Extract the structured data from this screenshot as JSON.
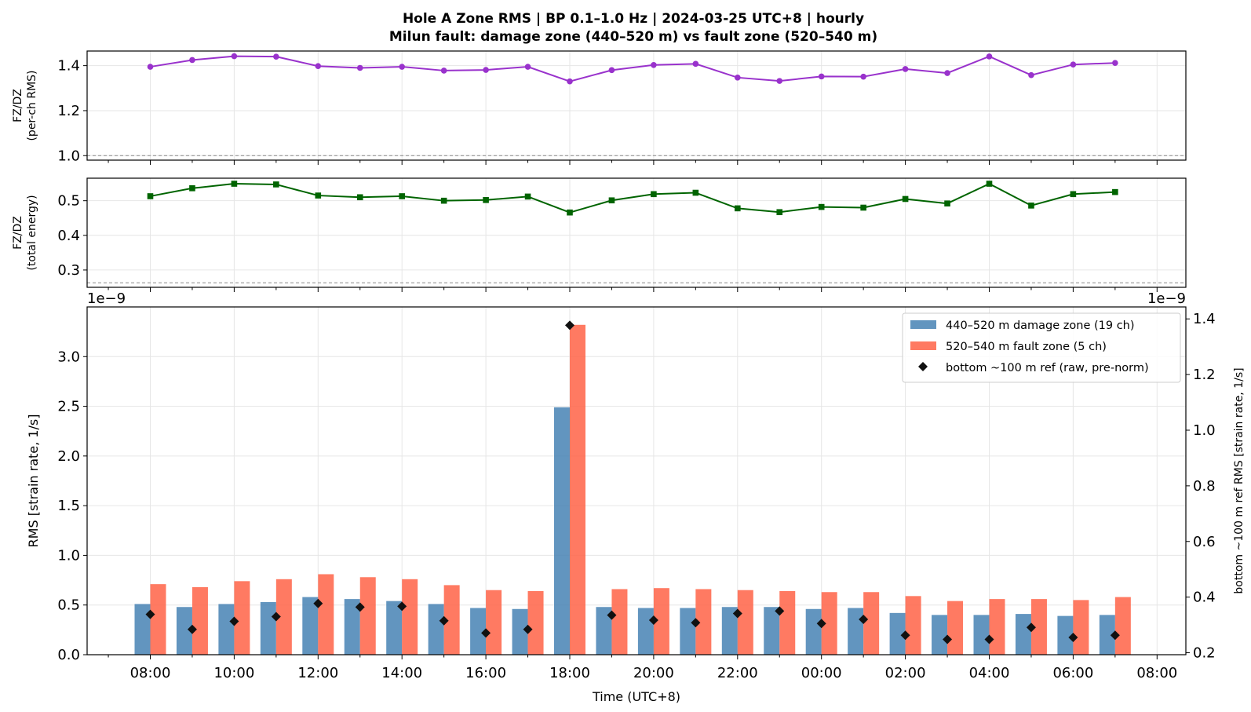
{
  "figure": {
    "title_line1": "Hole A Zone RMS  |  BP 0.1–1.0 Hz  |  2024-03-25 UTC+8  |  hourly",
    "title_line2": "Milun fault: damage zone (440–520 m) vs fault zone (520–540 m)"
  },
  "chart_data": [
    {
      "id": "ratio_rms",
      "type": "line",
      "ylabel_line1": "FZ/DZ",
      "ylabel_line2": "(per-ch RMS)",
      "ylim": [
        0.98,
        1.465
      ],
      "yticks": [
        1.0,
        1.2,
        1.4
      ],
      "ytick_labels": [
        "1.0",
        "1.2",
        "1.4"
      ],
      "reference_line": 1.0,
      "color": "#9932CC",
      "marker": "circle",
      "grid": true,
      "values": [
        1.395,
        1.425,
        1.442,
        1.44,
        1.398,
        1.39,
        1.395,
        1.378,
        1.381,
        1.395,
        1.33,
        1.38,
        1.403,
        1.408,
        1.347,
        1.332,
        1.352,
        1.351,
        1.385,
        1.367,
        1.441,
        1.358,
        1.405,
        1.412
      ]
    },
    {
      "id": "ratio_energy",
      "type": "line",
      "ylabel_line1": "FZ/DZ",
      "ylabel_line2": "(total energy)",
      "ylim": [
        0.25,
        0.565
      ],
      "yticks": [
        0.3,
        0.4,
        0.5
      ],
      "ytick_labels": [
        "0.3",
        "0.4",
        "0.5"
      ],
      "reference_line": 0.263,
      "color": "#006400",
      "marker": "square",
      "grid": true,
      "values": [
        0.513,
        0.536,
        0.549,
        0.547,
        0.515,
        0.51,
        0.513,
        0.5,
        0.502,
        0.512,
        0.466,
        0.501,
        0.519,
        0.523,
        0.478,
        0.467,
        0.482,
        0.48,
        0.505,
        0.492,
        0.549,
        0.486,
        0.519,
        0.525
      ]
    },
    {
      "id": "zone_rms",
      "type": "bar",
      "xlabel": "Time (UTC+8)",
      "ylabel": "RMS  [strain rate, 1/s]",
      "y2label": "bottom ~100 m ref RMS  [strain rate, 1/s]",
      "offset_left": "1e−9",
      "offset_right": "1e−9",
      "ylim": [
        0,
        3.5
      ],
      "y2lim": [
        0.193,
        1.443
      ],
      "yticks": [
        0.0,
        0.5,
        1.0,
        1.5,
        2.0,
        2.5,
        3.0
      ],
      "ytick_labels": [
        "0.0",
        "0.5",
        "1.0",
        "1.5",
        "2.0",
        "2.5",
        "3.0"
      ],
      "y2ticks": [
        0.2,
        0.4,
        0.6,
        0.8,
        1.0,
        1.2,
        1.4
      ],
      "y2tick_labels": [
        "0.2",
        "0.4",
        "0.6",
        "0.8",
        "1.0",
        "1.2",
        "1.4"
      ],
      "x_hours": 24,
      "x_start": "2024-03-25 08:00",
      "xticks": [
        "08:00",
        "10:00",
        "12:00",
        "14:00",
        "16:00",
        "18:00",
        "20:00",
        "22:00",
        "00:00",
        "02:00",
        "04:00",
        "06:00",
        "08:00"
      ],
      "grid": true,
      "legend_position": "upper right",
      "series": [
        {
          "name": "440–520 m  damage zone (19 ch)",
          "color": "#4682B4",
          "axis": "left",
          "values": [
            0.51,
            0.48,
            0.51,
            0.53,
            0.58,
            0.56,
            0.54,
            0.51,
            0.47,
            0.46,
            2.49,
            0.48,
            0.47,
            0.47,
            0.48,
            0.48,
            0.46,
            0.47,
            0.42,
            0.4,
            0.4,
            0.41,
            0.39,
            0.4
          ]
        },
        {
          "name": "520–540 m  fault zone (5 ch)",
          "color": "#FF6347",
          "axis": "left",
          "values": [
            0.71,
            0.68,
            0.74,
            0.76,
            0.81,
            0.78,
            0.76,
            0.7,
            0.65,
            0.64,
            3.32,
            0.66,
            0.67,
            0.66,
            0.65,
            0.64,
            0.63,
            0.63,
            0.59,
            0.54,
            0.56,
            0.56,
            0.55,
            0.58
          ]
        },
        {
          "name": "bottom ~100 m ref (raw, pre-norm)",
          "color": "#111111",
          "marker": "diamond",
          "axis": "right",
          "values": [
            0.338,
            0.284,
            0.313,
            0.33,
            0.377,
            0.364,
            0.367,
            0.315,
            0.271,
            0.284,
            1.377,
            0.335,
            0.317,
            0.308,
            0.341,
            0.35,
            0.305,
            0.32,
            0.263,
            0.248,
            0.248,
            0.291,
            0.255,
            0.263
          ]
        }
      ]
    }
  ]
}
